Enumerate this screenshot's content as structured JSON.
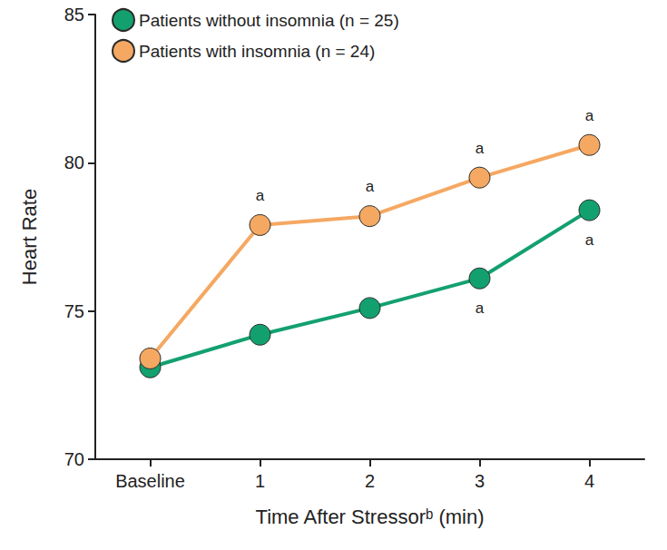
{
  "chart_data": {
    "type": "line",
    "categories": [
      "Baseline",
      "1",
      "2",
      "3",
      "4"
    ],
    "series": [
      {
        "name": "Patients without insomnia (n = 25)",
        "color": "#13a06f",
        "marker": "circle",
        "values": [
          73.1,
          74.2,
          75.1,
          76.1,
          78.4
        ]
      },
      {
        "name": "Patients with insomnia (n = 24)",
        "color": "#f5a862",
        "marker": "circle",
        "values": [
          73.4,
          77.9,
          78.2,
          79.5,
          80.6
        ]
      }
    ],
    "ylim": [
      70,
      85
    ],
    "yticks": [
      70,
      75,
      80,
      85
    ],
    "y_label": "Heart Rate",
    "x_label": "Time After Stressorᵇ (min)",
    "grid": false,
    "legend": "upper left",
    "annotations": [
      {
        "series": "Patients with insomnia (n = 24)",
        "category": "1",
        "text": "a"
      },
      {
        "series": "Patients with insomnia (n = 24)",
        "category": "2",
        "text": "a"
      },
      {
        "series": "Patients with insomnia (n = 24)",
        "category": "3",
        "text": "a"
      },
      {
        "series": "Patients with insomnia (n = 24)",
        "category": "4",
        "text": "a"
      },
      {
        "series": "Patients without insomnia (n = 25)",
        "category": "3",
        "text": "a"
      },
      {
        "series": "Patients without insomnia (n = 25)",
        "category": "4",
        "text": "a"
      }
    ]
  }
}
